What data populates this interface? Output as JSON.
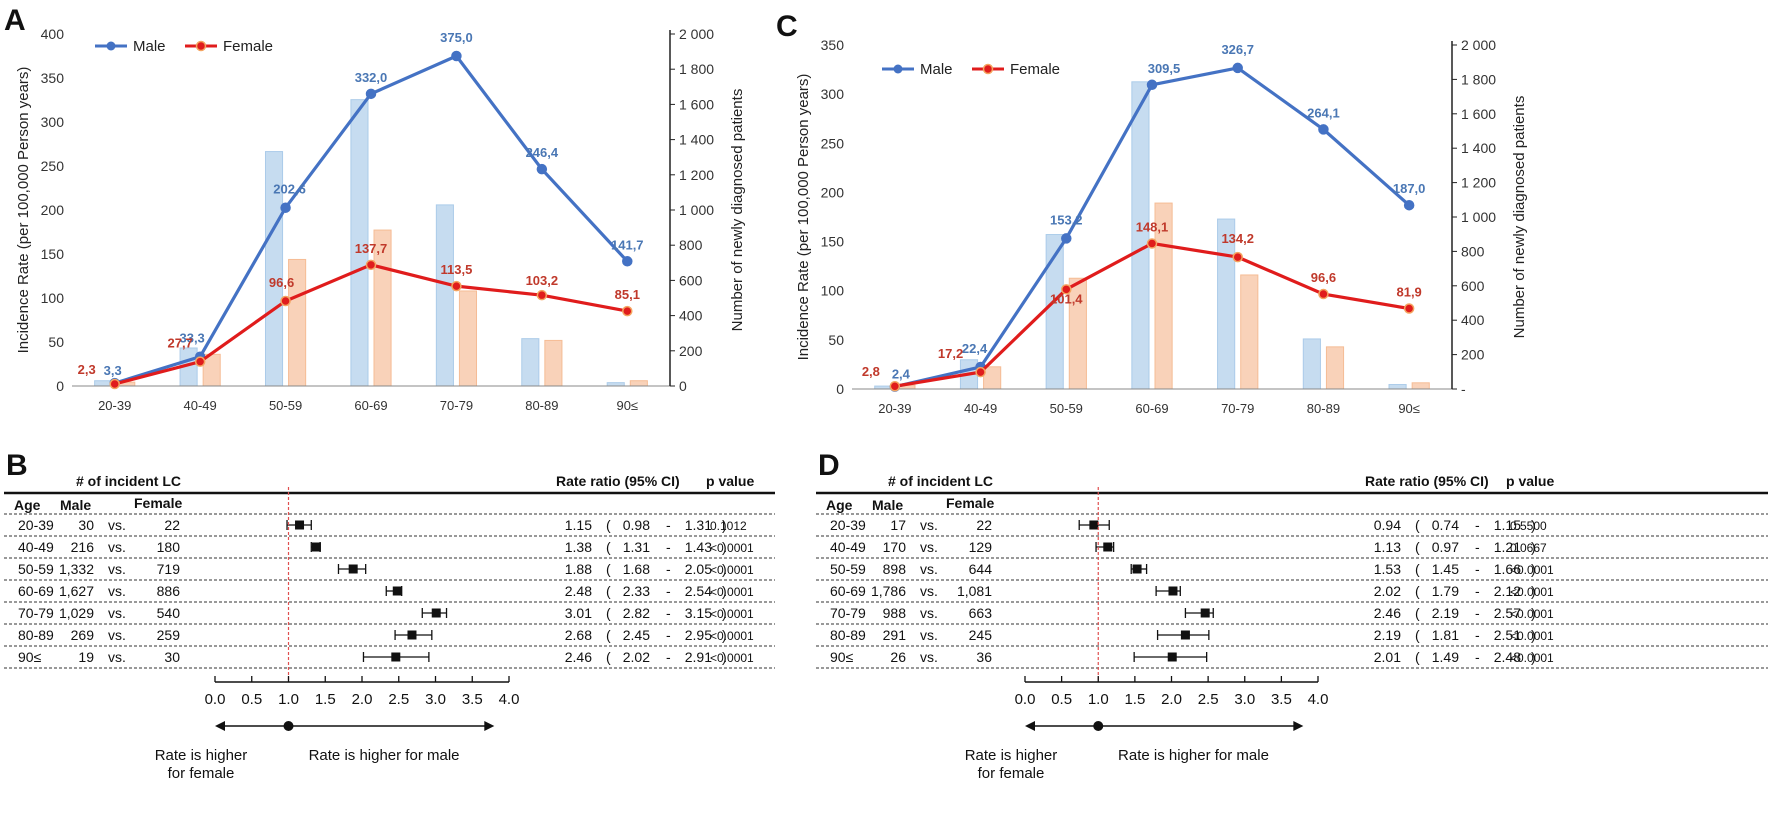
{
  "colors": {
    "male_line": "#4472C4",
    "female_line": "#E01C1C",
    "male_bar": "#BDD7EE",
    "female_bar": "#F8CBAD",
    "male_label": "#4A77B4",
    "female_label": "#C0392B",
    "refline": "#E05050"
  },
  "chart_data": [
    {
      "panel": "A",
      "type": "line",
      "categories": [
        "20-39",
        "40-49",
        "50-59",
        "60-69",
        "70-79",
        "80-89",
        "90≤"
      ],
      "ylabel": "Incidence Rate (per 100,000 Person years)",
      "y2label": "Number of newly diagnosed patients",
      "ylim": [
        0,
        400
      ],
      "y2lim": [
        0,
        2000
      ],
      "yticks": [
        "0",
        "50",
        "100",
        "150",
        "200",
        "250",
        "300",
        "350",
        "400"
      ],
      "y2ticks": [
        "0",
        "200",
        "400",
        "600",
        "800",
        "1 000",
        "1 200",
        "1 400",
        "1 600",
        "1 800",
        "2 000"
      ],
      "legend": [
        "Male",
        "Female"
      ],
      "legend_position": "top-left",
      "series": [
        {
          "name": "Male",
          "kind": "line",
          "values": [
            3.3,
            33.3,
            202.6,
            332.0,
            375.0,
            246.4,
            141.7
          ],
          "labels": [
            "3,3",
            "33,3",
            "202,6",
            "332,0",
            "375,0",
            "246,4",
            "141,7"
          ]
        },
        {
          "name": "Female",
          "kind": "line",
          "values": [
            2.3,
            27.7,
            96.6,
            137.7,
            113.5,
            103.2,
            85.1
          ],
          "labels": [
            "2,3",
            "27,7",
            "96,6",
            "137,7",
            "113,5",
            "103,2",
            "85,1"
          ]
        },
        {
          "name": "Male",
          "kind": "bar",
          "axis": "right",
          "values": [
            30,
            216,
            1332,
            1627,
            1029,
            269,
            19
          ]
        },
        {
          "name": "Female",
          "kind": "bar",
          "axis": "right",
          "values": [
            22,
            180,
            719,
            886,
            540,
            259,
            30
          ]
        }
      ]
    },
    {
      "panel": "C",
      "type": "line",
      "categories": [
        "20-39",
        "40-49",
        "50-59",
        "60-69",
        "70-79",
        "80-89",
        "90≤"
      ],
      "ylabel": "Incidence Rate (per 100,000 Person years)",
      "y2label": "Number of newly diagnosed patients",
      "ylim": [
        0,
        350
      ],
      "y2lim": [
        0,
        2000
      ],
      "yticks": [
        "0",
        "50",
        "100",
        "150",
        "200",
        "250",
        "300",
        "350"
      ],
      "y2ticks": [
        "-",
        "200",
        "400",
        "600",
        "800",
        "1 000",
        "1 200",
        "1 400",
        "1 600",
        "1 800",
        "2 000"
      ],
      "legend": [
        "Male",
        "Female"
      ],
      "legend_position": "top-left",
      "series": [
        {
          "name": "Male",
          "kind": "line",
          "values": [
            2.4,
            22.4,
            153.2,
            309.5,
            326.7,
            264.1,
            187.0
          ],
          "labels": [
            "2,4",
            "22,4",
            "153,2",
            "309,5",
            "326,7",
            "264,1",
            "187,0"
          ]
        },
        {
          "name": "Female",
          "kind": "line",
          "values": [
            2.8,
            17.2,
            101.4,
            148.1,
            134.2,
            96.6,
            81.9
          ],
          "labels": [
            "2,8",
            "17,2",
            "101,4",
            "148,1",
            "134,2",
            "96,6",
            "81,9"
          ]
        },
        {
          "name": "Male",
          "kind": "bar",
          "axis": "right",
          "values": [
            17,
            170,
            898,
            1786,
            988,
            291,
            26
          ]
        },
        {
          "name": "Female",
          "kind": "bar",
          "axis": "right",
          "values": [
            22,
            129,
            644,
            1081,
            663,
            245,
            36
          ]
        }
      ]
    },
    {
      "panel": "B",
      "type": "table",
      "header_count": "# of incident LC",
      "header_rr": "Rate ratio (95% CI)",
      "header_p": "p value",
      "col_age": "Age",
      "col_male": "Male",
      "col_female": "Female",
      "vs": "vs.",
      "xlim": [
        0,
        4
      ],
      "xticks": [
        "0.0",
        "0.5",
        "1.0",
        "1.5",
        "2.0",
        "2.5",
        "3.0",
        "3.5",
        "4.0"
      ],
      "ref": 1.0,
      "left_label": [
        "Rate is higher",
        "for female"
      ],
      "right_label": "Rate is higher for male",
      "rows": [
        {
          "age": "20-39",
          "male": "30",
          "female": "22",
          "rr": "1.15",
          "lo": "0.98",
          "hi": "1.31",
          "p": "0.1012",
          "rr_v": 1.15,
          "lo_v": 0.98,
          "hi_v": 1.31
        },
        {
          "age": "40-49",
          "male": "216",
          "female": "180",
          "rr": "1.38",
          "lo": "1.31",
          "hi": "1.43",
          "p": "<0.0001",
          "rr_v": 1.38,
          "lo_v": 1.31,
          "hi_v": 1.43
        },
        {
          "age": "50-59",
          "male": "1,332",
          "female": "719",
          "rr": "1.88",
          "lo": "1.68",
          "hi": "2.05",
          "p": "<0.0001",
          "rr_v": 1.88,
          "lo_v": 1.68,
          "hi_v": 2.05
        },
        {
          "age": "60-69",
          "male": "1,627",
          "female": "886",
          "rr": "2.48",
          "lo": "2.33",
          "hi": "2.54",
          "p": "<0.0001",
          "rr_v": 2.48,
          "lo_v": 2.33,
          "hi_v": 2.54
        },
        {
          "age": "70-79",
          "male": "1,029",
          "female": "540",
          "rr": "3.01",
          "lo": "2.82",
          "hi": "3.15",
          "p": "<0.0001",
          "rr_v": 3.01,
          "lo_v": 2.82,
          "hi_v": 3.15
        },
        {
          "age": "80-89",
          "male": "269",
          "female": "259",
          "rr": "2.68",
          "lo": "2.45",
          "hi": "2.95",
          "p": "<0.0001",
          "rr_v": 2.68,
          "lo_v": 2.45,
          "hi_v": 2.95
        },
        {
          "age": "90≤",
          "male": "19",
          "female": "30",
          "rr": "2.46",
          "lo": "2.02",
          "hi": "2.91",
          "p": "<0.0001",
          "rr_v": 2.46,
          "lo_v": 2.02,
          "hi_v": 2.91
        }
      ]
    },
    {
      "panel": "D",
      "type": "table",
      "header_count": "# of incident LC",
      "header_rr": "Rate ratio (95% CI)",
      "header_p": "p value",
      "col_age": "Age",
      "col_male": "Male",
      "col_female": "Female",
      "vs": "vs.",
      "xlim": [
        0,
        4
      ],
      "xticks": [
        "0.0",
        "0.5",
        "1.0",
        "1.5",
        "2.0",
        "2.5",
        "3.0",
        "3.5",
        "4.0"
      ],
      "ref": 1.0,
      "left_label": [
        "Rate is higher",
        "for female"
      ],
      "right_label": "Rate is higher for male",
      "rows": [
        {
          "age": "20-39",
          "male": "17",
          "female": "22",
          "rr": "0.94",
          "lo": "0.74",
          "hi": "1.15",
          "p": "0.5500",
          "rr_v": 0.94,
          "lo_v": 0.74,
          "hi_v": 1.15
        },
        {
          "age": "40-49",
          "male": "170",
          "female": "129",
          "rr": "1.13",
          "lo": "0.97",
          "hi": "1.21",
          "p": "0.0667",
          "rr_v": 1.13,
          "lo_v": 0.97,
          "hi_v": 1.21
        },
        {
          "age": "50-59",
          "male": "898",
          "female": "644",
          "rr": "1.53",
          "lo": "1.45",
          "hi": "1.66",
          "p": "<0.0001",
          "rr_v": 1.53,
          "lo_v": 1.45,
          "hi_v": 1.66
        },
        {
          "age": "60-69",
          "male": "1,786",
          "female": "1,081",
          "rr": "2.02",
          "lo": "1.79",
          "hi": "2.12",
          "p": "<0.0001",
          "rr_v": 2.02,
          "lo_v": 1.79,
          "hi_v": 2.12
        },
        {
          "age": "70-79",
          "male": "988",
          "female": "663",
          "rr": "2.46",
          "lo": "2.19",
          "hi": "2.57",
          "p": "<0.0001",
          "rr_v": 2.46,
          "lo_v": 2.19,
          "hi_v": 2.57
        },
        {
          "age": "80-89",
          "male": "291",
          "female": "245",
          "rr": "2.19",
          "lo": "1.81",
          "hi": "2.51",
          "p": "<0.0001",
          "rr_v": 2.19,
          "lo_v": 1.81,
          "hi_v": 2.51
        },
        {
          "age": "90≤",
          "male": "26",
          "female": "36",
          "rr": "2.01",
          "lo": "1.49",
          "hi": "2.48",
          "p": "<0.0001",
          "rr_v": 2.01,
          "lo_v": 1.49,
          "hi_v": 2.48
        }
      ]
    }
  ]
}
